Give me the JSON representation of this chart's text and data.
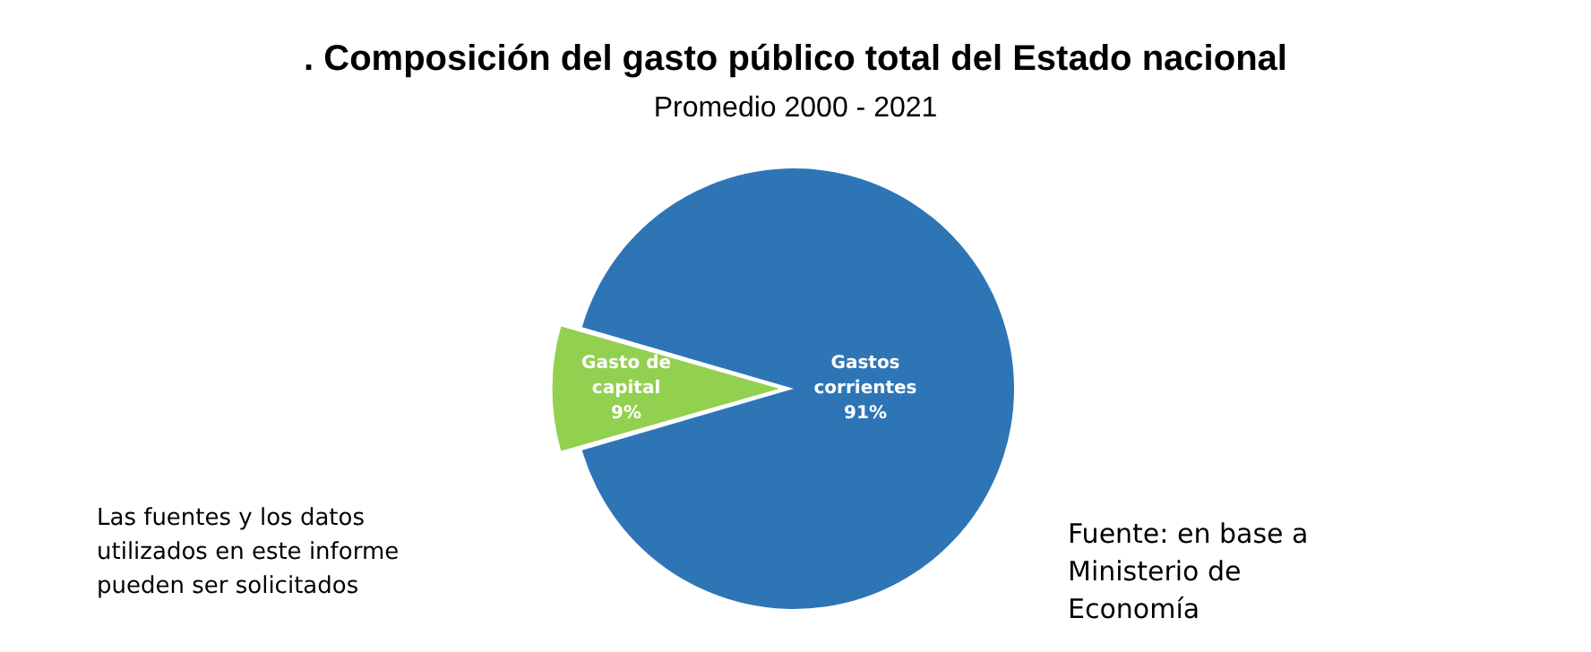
{
  "chart_data": {
    "type": "pie",
    "title": ". Composición del gasto público total del Estado nacional",
    "subtitle": "Promedio 2000 - 2021",
    "categories": [
      "Gasto de capital",
      "Gastos corrientes"
    ],
    "values": [
      9,
      91
    ],
    "colors": [
      "#92d050",
      "#2e75b6"
    ],
    "value_labels": [
      "9%",
      "91%"
    ],
    "legend": false,
    "annotations": [
      "Las fuentes y los datos utilizados en este informe pueden ser solicitados",
      "Fuente: en base a Ministerio de Economía"
    ]
  }
}
